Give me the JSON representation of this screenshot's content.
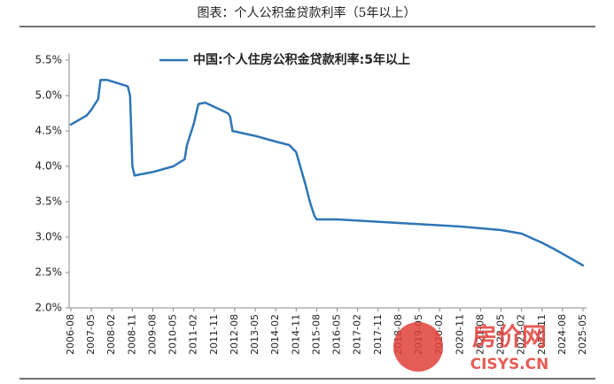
{
  "chart_data": {
    "type": "line",
    "title": "图表：个人公积金贷款利率（5年以上）",
    "x": [
      "2006-08",
      "2007-03",
      "2007-05",
      "2007-08",
      "2007-09",
      "2007-12",
      "2008-09",
      "2008-10",
      "2008-11",
      "2008-12",
      "2009-08",
      "2010-05",
      "2010-10",
      "2010-11",
      "2011-02",
      "2011-04",
      "2011-07",
      "2012-05",
      "2012-06",
      "2012-07",
      "2013-05",
      "2014-02",
      "2014-08",
      "2014-11",
      "2015-03",
      "2015-05",
      "2015-07",
      "2015-08",
      "2016-05",
      "2018-08",
      "2020-11",
      "2022-05",
      "2023-02",
      "2023-11",
      "2024-05",
      "2025-05"
    ],
    "series": [
      {
        "name": "中国:个人住房公积金贷款利率:5年以上",
        "color": "#2e75b6",
        "values": [
          4.59,
          4.72,
          4.8,
          4.95,
          5.22,
          5.22,
          5.13,
          5.0,
          4.0,
          3.87,
          3.92,
          4.0,
          4.1,
          4.3,
          4.6,
          4.88,
          4.9,
          4.75,
          4.7,
          4.5,
          4.43,
          4.35,
          4.3,
          4.2,
          3.75,
          3.5,
          3.3,
          3.25,
          3.25,
          3.2,
          3.15,
          3.1,
          3.05,
          2.92,
          2.82,
          2.6
        ]
      }
    ],
    "xlim": [
      "2006-08",
      "2025-05"
    ],
    "xticks": [
      "2006-08",
      "2007-05",
      "2008-02",
      "2008-11",
      "2009-08",
      "2010-05",
      "2011-02",
      "2011-11",
      "2012-08",
      "2013-05",
      "2014-02",
      "2014-11",
      "2015-08",
      "2016-05",
      "2017-02",
      "2017-11",
      "2018-08",
      "2019-05",
      "2020-02",
      "2020-11",
      "2021-08",
      "2022-05",
      "2023-02",
      "2023-11",
      "2024-08",
      "2025-05"
    ],
    "ylim": [
      2.0,
      5.5
    ],
    "yticks": [
      {
        "value": 2.0,
        "label": "2.0%"
      },
      {
        "value": 2.5,
        "label": "2.5%"
      },
      {
        "value": 3.0,
        "label": "3.0%"
      },
      {
        "value": 3.5,
        "label": "3.5%"
      },
      {
        "value": 4.0,
        "label": "4.0%"
      },
      {
        "value": 4.5,
        "label": "4.5%"
      },
      {
        "value": 5.0,
        "label": "5.0%"
      },
      {
        "value": 5.5,
        "label": "5.5%"
      }
    ],
    "grid": false,
    "legend": "top",
    "watermark": [
      "房价网",
      "CISYS.CN"
    ]
  }
}
